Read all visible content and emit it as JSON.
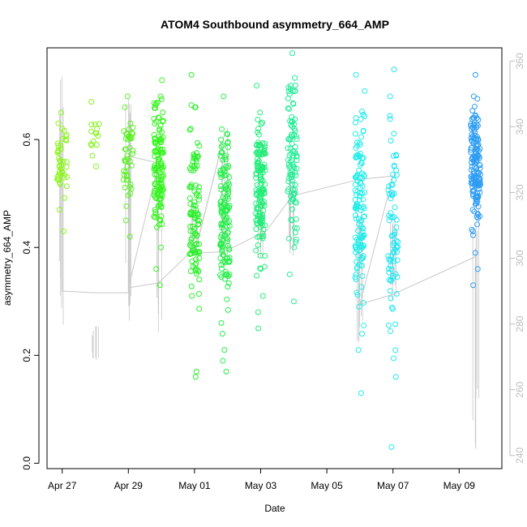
{
  "chart_data": {
    "type": "scatter",
    "title": "ATOM4 Southbound asymmetry_664_AMP",
    "xlabel": "Date",
    "ylabel": "asymmetry_664_AMP",
    "x_ticks": [
      "Apr 27",
      "Apr 29",
      "May 01",
      "May 03",
      "May 05",
      "May 07",
      "May 09"
    ],
    "xlim": [
      "2023-04-26T13:00",
      "2023-05-10T07:00"
    ],
    "ylim": [
      -0.01,
      0.77
    ],
    "y_ticks": [
      0.0,
      0.2,
      0.4,
      0.6
    ],
    "y_tick_labels": [
      "0.0",
      "0.2",
      "0.4",
      "0.6"
    ],
    "y2_ticks": [
      240,
      260,
      280,
      300,
      320,
      340,
      360
    ],
    "y2_tick_labels": [
      "240",
      "260",
      "280",
      "300",
      "320",
      "340",
      "360"
    ],
    "y2lim": [
      236,
      364
    ],
    "y2_color": "#bdbdbd",
    "grid": false,
    "legend": "none",
    "marker": "open-circle",
    "color_scale": "hue gradient by time (yellow-green to blue)",
    "clusters": [
      {
        "time": "2023-04-27T00:00",
        "color": "#8cf51c",
        "n": 36,
        "y_min": 0.43,
        "y_max": 0.66,
        "points": [
          0.43,
          0.47,
          0.52,
          0.54,
          0.56,
          0.58,
          0.6,
          0.62,
          0.63,
          0.65
        ]
      },
      {
        "time": "2023-04-28T00:00",
        "color": "#86f31f",
        "n": 10,
        "y_min": 0.55,
        "y_max": 0.67,
        "points": [
          0.55,
          0.57,
          0.59,
          0.62,
          0.67
        ]
      },
      {
        "time": "2023-04-29T00:00",
        "color": "#5af024",
        "n": 40,
        "y_min": 0.42,
        "y_max": 0.69,
        "points": [
          0.42,
          0.45,
          0.5,
          0.56,
          0.6,
          0.63,
          0.66,
          0.68
        ]
      },
      {
        "time": "2023-04-29T22:00",
        "color": "#33f41c",
        "n": 120,
        "y_min": 0.33,
        "y_max": 0.71,
        "points": [
          0.33,
          0.36,
          0.4,
          0.45,
          0.5,
          0.55,
          0.6,
          0.64,
          0.68,
          0.71
        ]
      },
      {
        "time": "2023-05-01T00:00",
        "color": "#2bef2b",
        "n": 100,
        "y_min": 0.16,
        "y_max": 0.72,
        "points": [
          0.16,
          0.17,
          0.31,
          0.39,
          0.43,
          0.5,
          0.56,
          0.62,
          0.66,
          0.72
        ]
      },
      {
        "time": "2023-05-01T22:00",
        "color": "#27ee4a",
        "n": 130,
        "y_min": 0.17,
        "y_max": 0.68,
        "points": [
          0.17,
          0.19,
          0.21,
          0.24,
          0.26,
          0.38,
          0.45,
          0.52,
          0.6,
          0.68
        ]
      },
      {
        "time": "2023-05-03T00:00",
        "color": "#24ec7a",
        "n": 140,
        "y_min": 0.25,
        "y_max": 0.7,
        "points": [
          0.25,
          0.28,
          0.31,
          0.36,
          0.42,
          0.45,
          0.5,
          0.55,
          0.62,
          0.7
        ]
      },
      {
        "time": "2023-05-03T23:00",
        "color": "#24ec96",
        "n": 90,
        "y_min": 0.3,
        "y_max": 0.76,
        "points": [
          0.3,
          0.35,
          0.4,
          0.45,
          0.5,
          0.55,
          0.69,
          0.7,
          0.76
        ]
      },
      {
        "time": "2023-05-06T00:00",
        "color": "#22ece8",
        "n": 120,
        "y_min": 0.13,
        "y_max": 0.72,
        "points": [
          0.13,
          0.21,
          0.24,
          0.29,
          0.35,
          0.4,
          0.45,
          0.5,
          0.57,
          0.64,
          0.72
        ]
      },
      {
        "time": "2023-05-07T00:00",
        "color": "#24e6f2",
        "n": 70,
        "y_min": 0.03,
        "y_max": 0.73,
        "points": [
          0.03,
          0.16,
          0.34,
          0.4,
          0.45,
          0.5,
          0.55,
          0.68,
          0.73
        ]
      },
      {
        "time": "2023-05-09T12:00",
        "color": "#2e9df2",
        "n": 150,
        "y_min": 0.33,
        "y_max": 0.72,
        "points": [
          0.33,
          0.36,
          0.39,
          0.43,
          0.48,
          0.52,
          0.55,
          0.59,
          0.64,
          0.68,
          0.72
        ]
      }
    ],
    "secondary_line": {
      "color": "#c8c8c8",
      "x": [
        "2023-04-27T00:00",
        "2023-04-27T00:00",
        "2023-04-28T00:00",
        "2023-04-29T00:00",
        "2023-04-29T00:00",
        "2023-04-29T22:00",
        "2023-04-29T00:00",
        "2023-04-29T22:00",
        "2023-05-01T00:00",
        "2023-05-01T00:00",
        "2023-05-01T22:00",
        "2023-05-01T00:00",
        "2023-05-01T22:00",
        "2023-05-03T00:00",
        "2023-05-03T00:00",
        "2023-05-03T23:00",
        "2023-05-06T00:00",
        "2023-05-07T00:00",
        "2023-05-06T00:00",
        "2023-05-07T00:00",
        "2023-05-09T12:00",
        "2023-05-09T12:00"
      ],
      "y": [
        330,
        290,
        289.5,
        289.5,
        331,
        329,
        291,
        292.5,
        303,
        301,
        338,
        301.5,
        302,
        307.5,
        306,
        319,
        324,
        325,
        286,
        289,
        300.5,
        242
      ]
    },
    "secondary_spikes": [
      {
        "time": "2023-04-27T00:00",
        "low": 278,
        "high": 358
      },
      {
        "time": "2023-04-28T00:00",
        "low": 268,
        "high": 280
      },
      {
        "time": "2023-04-29T00:00",
        "low": 278,
        "high": 352
      },
      {
        "time": "2023-04-29T22:00",
        "low": 276,
        "high": 330
      },
      {
        "time": "2023-05-01T00:00",
        "low": 300,
        "high": 320
      },
      {
        "time": "2023-05-01T22:00",
        "low": 296,
        "high": 340
      },
      {
        "time": "2023-05-03T00:00",
        "low": 300,
        "high": 320
      },
      {
        "time": "2023-05-03T23:00",
        "low": 300,
        "high": 330
      },
      {
        "time": "2023-05-06T00:00",
        "low": 274,
        "high": 318
      },
      {
        "time": "2023-05-07T00:00",
        "low": 282,
        "high": 318
      },
      {
        "time": "2023-05-09T12:00",
        "low": 242,
        "high": 320
      }
    ]
  }
}
